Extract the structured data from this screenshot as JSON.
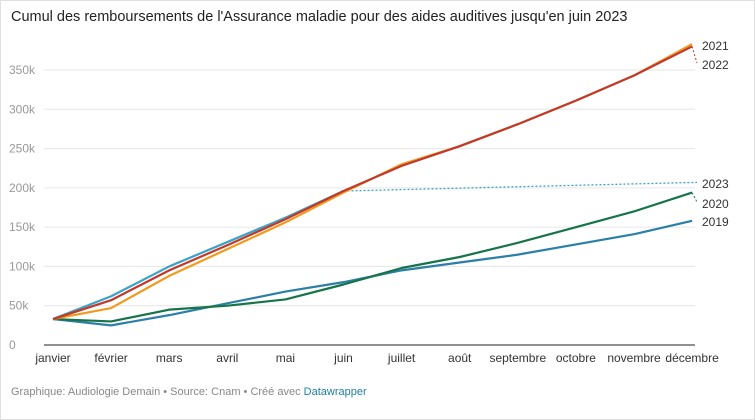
{
  "chart_data": {
    "type": "line",
    "title": "Cumul des remboursements de l'Assurance maladie pour des aides auditives jusqu'en juin 2023",
    "categories": [
      "janvier",
      "février",
      "mars",
      "avril",
      "mai",
      "juin",
      "juillet",
      "août",
      "septembre",
      "octobre",
      "novembre",
      "décembre"
    ],
    "yticks": [
      0,
      50000,
      100000,
      150000,
      200000,
      250000,
      300000,
      350000
    ],
    "ytick_labels": [
      "0",
      "50k",
      "100k",
      "150k",
      "200k",
      "250k",
      "300k",
      "350k"
    ],
    "ylim": [
      0,
      350000
    ],
    "grid": true,
    "series": [
      {
        "name": "2019",
        "color": "#2b7fa8",
        "values": [
          33000,
          25000,
          38000,
          53000,
          68000,
          80000,
          95000,
          105000,
          115000,
          128000,
          141000,
          158000
        ]
      },
      {
        "name": "2020",
        "color": "#17744a",
        "values": [
          33000,
          30000,
          45000,
          50000,
          58000,
          77000,
          98000,
          112000,
          130000,
          150000,
          170000,
          194000
        ]
      },
      {
        "name": "2021",
        "color": "#f29a1e",
        "values": [
          33000,
          47000,
          88000,
          122000,
          156000,
          194000,
          230000,
          253000,
          281000,
          311000,
          343000,
          383000
        ]
      },
      {
        "name": "2022",
        "color": "#c0392b",
        "values": [
          33000,
          57000,
          95000,
          127000,
          160000,
          196000,
          228000,
          253000,
          281000,
          311000,
          343000,
          380000
        ]
      },
      {
        "name": "2023",
        "color": "#3aa3c8",
        "values": [
          33000,
          62000,
          100000,
          131000,
          162000,
          196000,
          null,
          null,
          null,
          null,
          null,
          null
        ],
        "dotted_extension_end": 207000
      }
    ]
  },
  "footer": {
    "text": "Graphique: Audiologie Demain • Source: Cnam • Créé avec ",
    "link": "Datawrapper"
  }
}
